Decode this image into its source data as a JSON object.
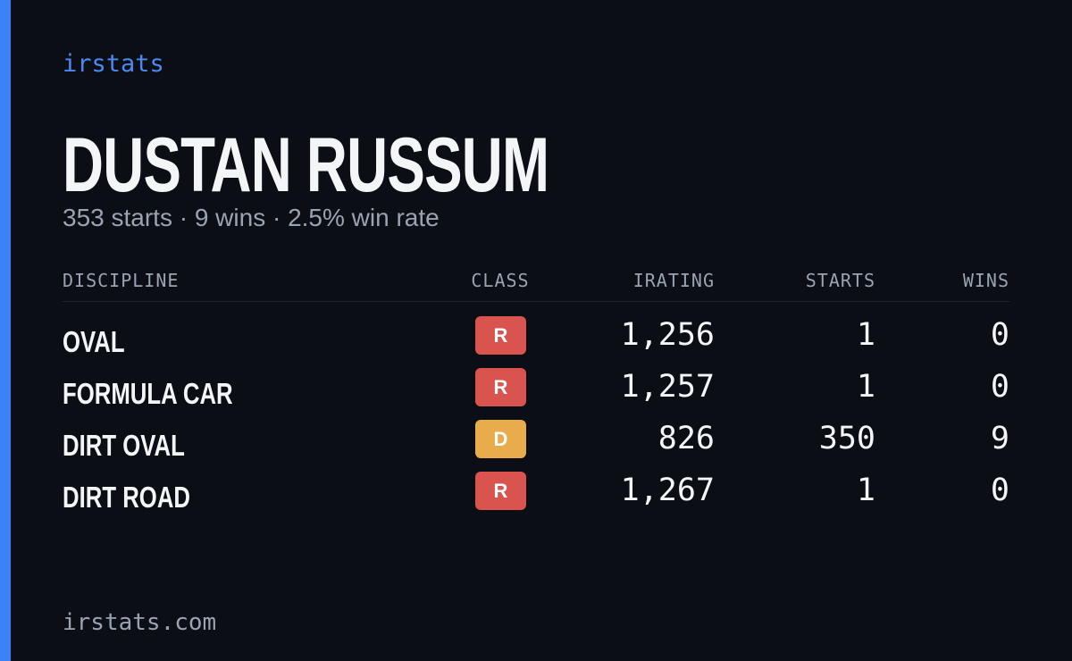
{
  "brand": "irstats",
  "driver": {
    "name": "DUSTAN RUSSUM",
    "summary": "353 starts · 9 wins · 2.5% win rate"
  },
  "table": {
    "columns": [
      "DISCIPLINE",
      "CLASS",
      "IRATING",
      "STARTS",
      "WINS"
    ],
    "rows": [
      {
        "discipline": "OVAL",
        "class": "R",
        "class_color": "#d9534f",
        "irating": "1,256",
        "starts": "1",
        "wins": "0"
      },
      {
        "discipline": "FORMULA CAR",
        "class": "R",
        "class_color": "#d9534f",
        "irating": "1,257",
        "starts": "1",
        "wins": "0"
      },
      {
        "discipline": "DIRT OVAL",
        "class": "D",
        "class_color": "#e8ac4c",
        "irating": "826",
        "starts": "350",
        "wins": "9"
      },
      {
        "discipline": "DIRT ROAD",
        "class": "R",
        "class_color": "#d9534f",
        "irating": "1,267",
        "starts": "1",
        "wins": "0"
      }
    ]
  },
  "footer": "irstats.com"
}
